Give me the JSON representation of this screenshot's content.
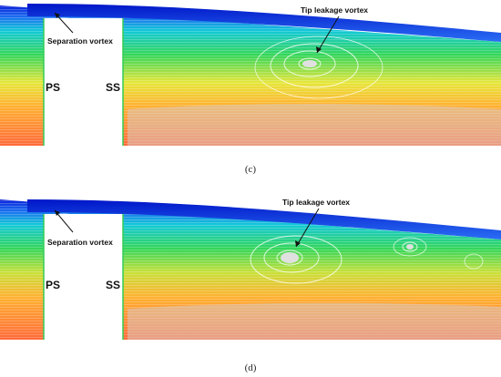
{
  "panel_c": {
    "caption": "(c)",
    "tip_leakage_vortex": "Tip leakage vortex",
    "separation_vortex": "Separation vortex",
    "pressure_side": "PS",
    "suction_side": "SS"
  },
  "panel_d": {
    "caption": "(d)",
    "tip_leakage_vortex": "Tip leakage vortex",
    "separation_vortex": "Separation vortex",
    "pressure_side": "PS",
    "suction_side": "SS"
  },
  "colors": {
    "gap_flow": "#0a2cd8",
    "mid_flow": "#22cc66",
    "main_flow": "#ff5a2a",
    "blade": "#ffffff"
  }
}
